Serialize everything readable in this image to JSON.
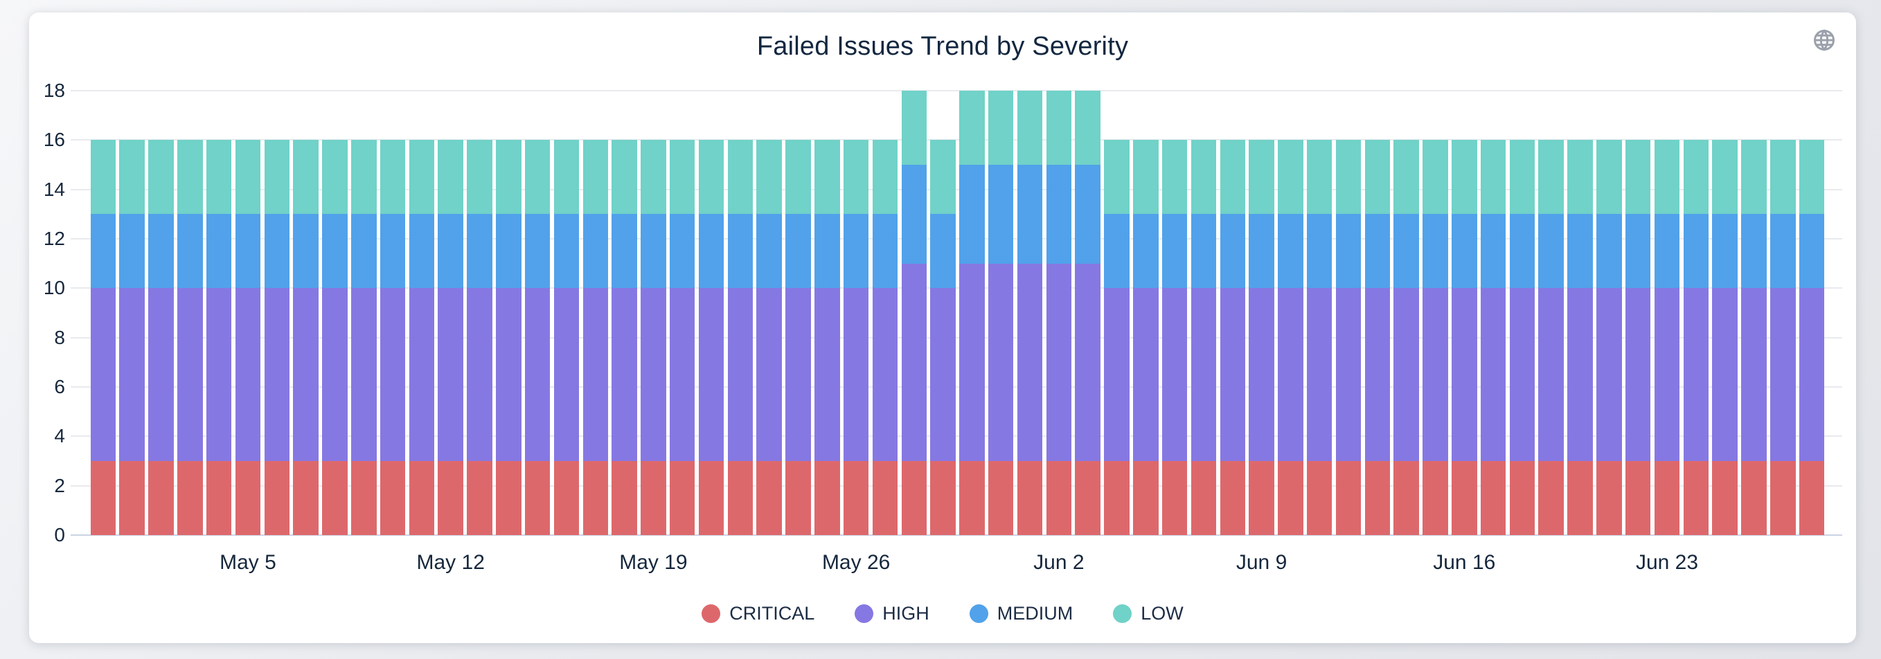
{
  "header": {
    "title": "Failed Issues Trend by Severity",
    "globe_icon": "globe-icon"
  },
  "colors": {
    "critical": "#dd686c",
    "high": "#8678e2",
    "medium": "#51a2ea",
    "low": "#70d2c8",
    "text": "#16273c",
    "gridline": "#e9eaee",
    "axis_baseline": "#ccd4e2",
    "card_background": "#ffffff",
    "page_background": "#e9ebef"
  },
  "chart_data": {
    "type": "bar",
    "stacked": true,
    "title": "Failed Issues Trend by Severity",
    "xlabel": "",
    "ylabel": "",
    "ylim": [
      0,
      18
    ],
    "y_ticks": [
      0,
      2,
      4,
      6,
      8,
      10,
      12,
      14,
      16,
      18
    ],
    "grid": true,
    "legend_position": "bottom",
    "categories": [
      "Apr 30",
      "May 1",
      "May 2",
      "May 3",
      "May 4",
      "May 5",
      "May 6",
      "May 7",
      "May 8",
      "May 9",
      "May 10",
      "May 11",
      "May 12",
      "May 13",
      "May 14",
      "May 15",
      "May 16",
      "May 17",
      "May 18",
      "May 19",
      "May 20",
      "May 21",
      "May 22",
      "May 23",
      "May 24",
      "May 25",
      "May 26",
      "May 27",
      "May 28",
      "May 29",
      "May 30",
      "May 31",
      "Jun 1",
      "Jun 2",
      "Jun 3",
      "Jun 4",
      "Jun 5",
      "Jun 6",
      "Jun 7",
      "Jun 8",
      "Jun 9",
      "Jun 10",
      "Jun 11",
      "Jun 12",
      "Jun 13",
      "Jun 14",
      "Jun 15",
      "Jun 16",
      "Jun 17",
      "Jun 18",
      "Jun 19",
      "Jun 20",
      "Jun 21",
      "Jun 22",
      "Jun 23",
      "Jun 24",
      "Jun 25",
      "Jun 26",
      "Jun 27",
      "Jun 28"
    ],
    "x_tick_labels": [
      "May 5",
      "May 12",
      "May 19",
      "May 26",
      "Jun 2",
      "Jun 9",
      "Jun 16",
      "Jun 23"
    ],
    "x_tick_indices": [
      5,
      12,
      19,
      26,
      33,
      40,
      47,
      54
    ],
    "series": [
      {
        "name": "CRITICAL",
        "color": "#dd686c",
        "values": [
          3,
          3,
          3,
          3,
          3,
          3,
          3,
          3,
          3,
          3,
          3,
          3,
          3,
          3,
          3,
          3,
          3,
          3,
          3,
          3,
          3,
          3,
          3,
          3,
          3,
          3,
          3,
          3,
          3,
          3,
          3,
          3,
          3,
          3,
          3,
          3,
          3,
          3,
          3,
          3,
          3,
          3,
          3,
          3,
          3,
          3,
          3,
          3,
          3,
          3,
          3,
          3,
          3,
          3,
          3,
          3,
          3,
          3,
          3,
          3
        ]
      },
      {
        "name": "HIGH",
        "color": "#8678e2",
        "values": [
          7,
          7,
          7,
          7,
          7,
          7,
          7,
          7,
          7,
          7,
          7,
          7,
          7,
          7,
          7,
          7,
          7,
          7,
          7,
          7,
          7,
          7,
          7,
          7,
          7,
          7,
          7,
          7,
          8,
          7,
          8,
          8,
          8,
          8,
          8,
          7,
          7,
          7,
          7,
          7,
          7,
          7,
          7,
          7,
          7,
          7,
          7,
          7,
          7,
          7,
          7,
          7,
          7,
          7,
          7,
          7,
          7,
          7,
          7,
          7
        ]
      },
      {
        "name": "MEDIUM",
        "color": "#51a2ea",
        "values": [
          3,
          3,
          3,
          3,
          3,
          3,
          3,
          3,
          3,
          3,
          3,
          3,
          3,
          3,
          3,
          3,
          3,
          3,
          3,
          3,
          3,
          3,
          3,
          3,
          3,
          3,
          3,
          3,
          4,
          3,
          4,
          4,
          4,
          4,
          4,
          3,
          3,
          3,
          3,
          3,
          3,
          3,
          3,
          3,
          3,
          3,
          3,
          3,
          3,
          3,
          3,
          3,
          3,
          3,
          3,
          3,
          3,
          3,
          3,
          3
        ]
      },
      {
        "name": "LOW",
        "color": "#70d2c8",
        "values": [
          3,
          3,
          3,
          3,
          3,
          3,
          3,
          3,
          3,
          3,
          3,
          3,
          3,
          3,
          3,
          3,
          3,
          3,
          3,
          3,
          3,
          3,
          3,
          3,
          3,
          3,
          3,
          3,
          3,
          3,
          3,
          3,
          3,
          3,
          3,
          3,
          3,
          3,
          3,
          3,
          3,
          3,
          3,
          3,
          3,
          3,
          3,
          3,
          3,
          3,
          3,
          3,
          3,
          3,
          3,
          3,
          3,
          3,
          3,
          3
        ]
      }
    ]
  },
  "legend": {
    "items": [
      {
        "label": "CRITICAL",
        "color": "#dd686c"
      },
      {
        "label": "HIGH",
        "color": "#8678e2"
      },
      {
        "label": "MEDIUM",
        "color": "#51a2ea"
      },
      {
        "label": "LOW",
        "color": "#70d2c8"
      }
    ]
  }
}
